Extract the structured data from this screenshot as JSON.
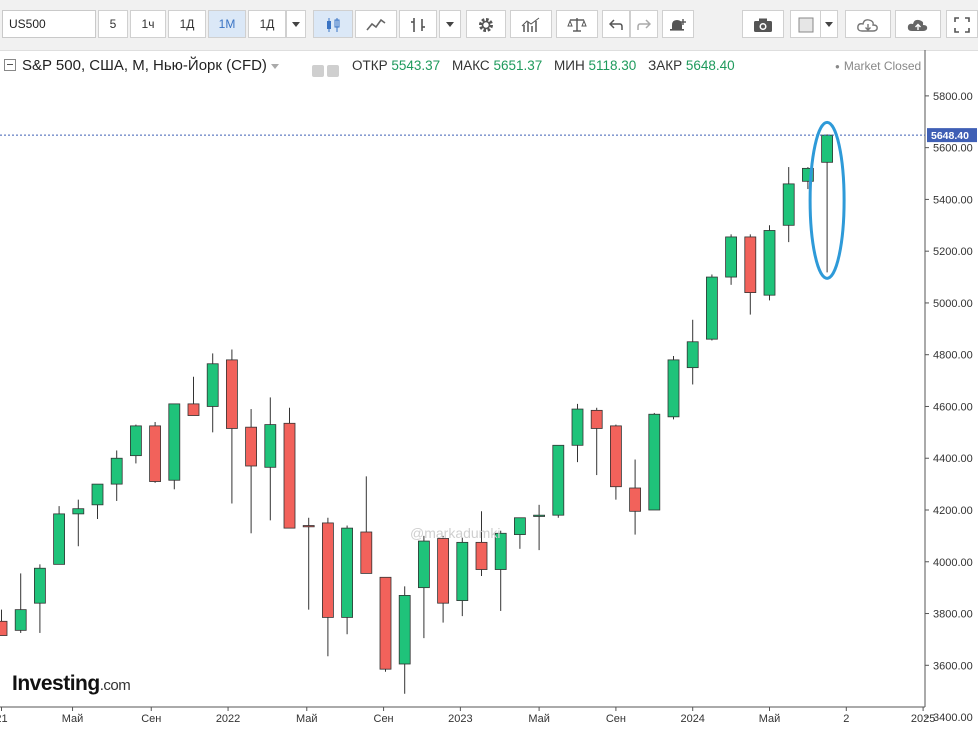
{
  "toolbar": {
    "symbol_value": "US500",
    "timeframes": [
      "5",
      "1ч",
      "1Д",
      "1М",
      "1Д"
    ],
    "active_timeframe_index": 3
  },
  "legend": {
    "title": "S&P 500, США, М, Нью-Йорк (CFD)",
    "open_label": "ОТКР",
    "open": "5543.37",
    "high_label": "МАКС",
    "high": "5651.37",
    "low_label": "МИН",
    "low": "5118.30",
    "close_label": "ЗАКР",
    "close": "5648.40",
    "status": "Market Closed"
  },
  "watermark": "@markadumki",
  "logo": {
    "main": "Investing",
    "domain": ".com"
  },
  "colors": {
    "up": "#1fc37a",
    "down": "#f2625b",
    "wick": "#333333",
    "last_price": "#3f5fb5",
    "highlight": "#2e9ad8"
  },
  "chart_data": {
    "type": "candlestick",
    "interval": "1M",
    "ylim": [
      3350,
      5900
    ],
    "y_ticks": [
      3400,
      3600,
      3800,
      4000,
      4200,
      4400,
      4600,
      4800,
      5000,
      5200,
      5400,
      5600,
      5800
    ],
    "last_price": 5648.4,
    "last_price_label": "5648.40",
    "x_ticks": [
      {
        "index": 0,
        "label": "21"
      },
      {
        "index": 3.7,
        "label": "Май"
      },
      {
        "index": 7.8,
        "label": "Сен"
      },
      {
        "index": 11.8,
        "label": "2022"
      },
      {
        "index": 15.9,
        "label": "Май"
      },
      {
        "index": 19.9,
        "label": "Сен"
      },
      {
        "index": 23.9,
        "label": "2023"
      },
      {
        "index": 28.0,
        "label": "Май"
      },
      {
        "index": 32.0,
        "label": "Сен"
      },
      {
        "index": 36.0,
        "label": "2024"
      },
      {
        "index": 40.0,
        "label": "Май"
      },
      {
        "index": 44.0,
        "label": "2"
      },
      {
        "index": 48.0,
        "label": "2025"
      }
    ],
    "candles": [
      {
        "o": 3770,
        "h": 3815,
        "l": 3720,
        "c": 3715
      },
      {
        "o": 3735,
        "h": 3955,
        "l": 3725,
        "c": 3815
      },
      {
        "o": 3840,
        "h": 3990,
        "l": 3725,
        "c": 3975
      },
      {
        "o": 3990,
        "h": 4215,
        "l": 3990,
        "c": 4185
      },
      {
        "o": 4185,
        "h": 4240,
        "l": 4060,
        "c": 4205
      },
      {
        "o": 4220,
        "h": 4300,
        "l": 4165,
        "c": 4300
      },
      {
        "o": 4300,
        "h": 4430,
        "l": 4235,
        "c": 4400
      },
      {
        "o": 4410,
        "h": 4530,
        "l": 4380,
        "c": 4525
      },
      {
        "o": 4525,
        "h": 4540,
        "l": 4305,
        "c": 4310
      },
      {
        "o": 4315,
        "h": 4600,
        "l": 4280,
        "c": 4610
      },
      {
        "o": 4610,
        "h": 4715,
        "l": 4570,
        "c": 4565
      },
      {
        "o": 4600,
        "h": 4805,
        "l": 4500,
        "c": 4765
      },
      {
        "o": 4780,
        "h": 4820,
        "l": 4225,
        "c": 4515
      },
      {
        "o": 4520,
        "h": 4590,
        "l": 4110,
        "c": 4370
      },
      {
        "o": 4365,
        "h": 4635,
        "l": 4160,
        "c": 4530
      },
      {
        "o": 4535,
        "h": 4595,
        "l": 4130,
        "c": 4130
      },
      {
        "o": 4140,
        "h": 4170,
        "l": 3815,
        "c": 4135
      },
      {
        "o": 4150,
        "h": 4170,
        "l": 3635,
        "c": 3785
      },
      {
        "o": 3785,
        "h": 4140,
        "l": 3720,
        "c": 4130
      },
      {
        "o": 4115,
        "h": 4330,
        "l": 3955,
        "c": 3955
      },
      {
        "o": 3940,
        "h": 3935,
        "l": 3575,
        "c": 3585
      },
      {
        "o": 3605,
        "h": 3905,
        "l": 3490,
        "c": 3870
      },
      {
        "o": 3900,
        "h": 4100,
        "l": 3705,
        "c": 4080
      },
      {
        "o": 4090,
        "h": 4100,
        "l": 3765,
        "c": 3840
      },
      {
        "o": 3850,
        "h": 4095,
        "l": 3790,
        "c": 4075
      },
      {
        "o": 4075,
        "h": 4195,
        "l": 3945,
        "c": 3970
      },
      {
        "o": 3970,
        "h": 4120,
        "l": 3810,
        "c": 4110
      },
      {
        "o": 4105,
        "h": 4170,
        "l": 4050,
        "c": 4170
      },
      {
        "o": 4175,
        "h": 4220,
        "l": 4045,
        "c": 4180
      },
      {
        "o": 4180,
        "h": 4450,
        "l": 4170,
        "c": 4450
      },
      {
        "o": 4450,
        "h": 4610,
        "l": 4385,
        "c": 4590
      },
      {
        "o": 4585,
        "h": 4595,
        "l": 4335,
        "c": 4515
      },
      {
        "o": 4525,
        "h": 4530,
        "l": 4240,
        "c": 4290
      },
      {
        "o": 4285,
        "h": 4395,
        "l": 4105,
        "c": 4195
      },
      {
        "o": 4200,
        "h": 4575,
        "l": 4200,
        "c": 4570
      },
      {
        "o": 4560,
        "h": 4795,
        "l": 4550,
        "c": 4780
      },
      {
        "o": 4750,
        "h": 4935,
        "l": 4685,
        "c": 4850
      },
      {
        "o": 4860,
        "h": 5110,
        "l": 4855,
        "c": 5100
      },
      {
        "o": 5100,
        "h": 5265,
        "l": 5070,
        "c": 5255
      },
      {
        "o": 5255,
        "h": 5265,
        "l": 4955,
        "c": 5040
      },
      {
        "o": 5030,
        "h": 5300,
        "l": 5010,
        "c": 5280
      },
      {
        "o": 5300,
        "h": 5525,
        "l": 5235,
        "c": 5460
      },
      {
        "o": 5470,
        "h": 5525,
        "l": 5440,
        "c": 5520
      },
      {
        "o": 5543.37,
        "h": 5651.37,
        "l": 5118.3,
        "c": 5648.4
      }
    ]
  }
}
